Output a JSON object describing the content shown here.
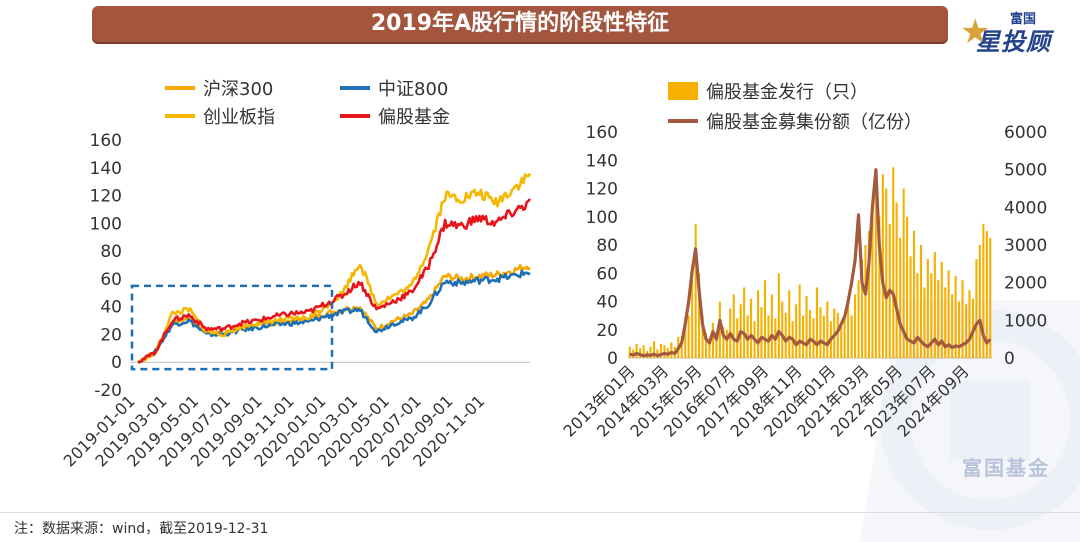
{
  "header": {
    "title": "2019年A股行情的阶段性特征"
  },
  "logo": {
    "top": "富国",
    "main": "星投顾"
  },
  "watermark": {
    "text": "富国基金"
  },
  "footnote": "注：数据来源：wind，截至2019-12-31",
  "colors": {
    "hs300": "#f6a800",
    "zz800": "#1f6fb5",
    "cyb": "#f5b800",
    "fund": "#e8141b",
    "issue_bar": "#f5b000",
    "raise_line": "#a35a3e",
    "title_bg": "#a3553e"
  },
  "chart_data": [
    {
      "type": "line",
      "ylim": [
        -20,
        160
      ],
      "yticks": [
        "160",
        "140",
        "120",
        "100",
        "80",
        "60",
        "40",
        "20",
        "0",
        "-20"
      ],
      "x_tick_labels": [
        "2019-01-01",
        "2019-03-01",
        "2019-05-01",
        "2019-07-01",
        "2019-09-01",
        "2019-11-01",
        "2020-01-01",
        "2020-03-01",
        "2020-05-01",
        "2020-07-01",
        "2020-09-01",
        "2020-11-01"
      ],
      "x": [
        "2019-01",
        "2019-02",
        "2019-03",
        "2019-04",
        "2019-05",
        "2019-06",
        "2019-07",
        "2019-08",
        "2019-09",
        "2019-10",
        "2019-11",
        "2019-12",
        "2020-01",
        "2020-02",
        "2020-03",
        "2020-04",
        "2020-05",
        "2020-06",
        "2020-07",
        "2020-08",
        "2020-09",
        "2020-10",
        "2020-11",
        "2020-12"
      ],
      "series": [
        {
          "name": "沪深300",
          "color": "#f6a800",
          "values": [
            0,
            8,
            28,
            32,
            22,
            21,
            25,
            27,
            28,
            30,
            31,
            35,
            38,
            40,
            24,
            30,
            34,
            44,
            62,
            60,
            62,
            63,
            66,
            70
          ]
        },
        {
          "name": "中证800",
          "color": "#1f6fb5",
          "values": [
            0,
            7,
            27,
            30,
            20,
            20,
            23,
            25,
            27,
            28,
            29,
            33,
            36,
            38,
            22,
            28,
            31,
            41,
            58,
            57,
            59,
            60,
            62,
            65
          ]
        },
        {
          "name": "创业板指",
          "color": "#f5b800",
          "values": [
            0,
            6,
            35,
            38,
            22,
            20,
            25,
            28,
            30,
            31,
            32,
            40,
            50,
            72,
            42,
            48,
            54,
            80,
            120,
            118,
            122,
            115,
            125,
            135
          ]
        },
        {
          "name": "偏股基金",
          "color": "#e8141b",
          "values": [
            0,
            7,
            30,
            34,
            24,
            24,
            28,
            30,
            33,
            35,
            36,
            42,
            48,
            58,
            38,
            44,
            50,
            68,
            100,
            98,
            104,
            100,
            108,
            115
          ]
        }
      ],
      "annotation": "dashed box highlighting 2019"
    },
    {
      "type": "bar+line",
      "ylim_left": [
        0,
        160
      ],
      "ylim_right": [
        0,
        6000
      ],
      "yticks_left": [
        "160",
        "140",
        "120",
        "100",
        "80",
        "60",
        "40",
        "20",
        "0"
      ],
      "yticks_right": [
        "6000",
        "5000",
        "4000",
        "3000",
        "2000",
        "1000",
        "0"
      ],
      "x_tick_labels": [
        "2013年01月",
        "2014年03月",
        "2015年05月",
        "2016年07月",
        "2017年09月",
        "2018年11月",
        "2020年01月",
        "2021年03月",
        "2022年05月",
        "2023年07月",
        "2024年09月"
      ],
      "series": [
        {
          "name": "偏股基金发行（只）",
          "type": "bar",
          "color": "#f5b000",
          "values": [
            8,
            6,
            10,
            7,
            9,
            5,
            8,
            12,
            6,
            10,
            9,
            7,
            11,
            8,
            15,
            12,
            22,
            30,
            55,
            95,
            60,
            30,
            18,
            14,
            25,
            18,
            40,
            22,
            20,
            35,
            45,
            28,
            38,
            50,
            30,
            42,
            26,
            48,
            36,
            55,
            30,
            45,
            28,
            60,
            40,
            32,
            48,
            26,
            38,
            52,
            30,
            44,
            34,
            28,
            50,
            36,
            30,
            40,
            26,
            35,
            32,
            22,
            28,
            40,
            30,
            45,
            55,
            70,
            80,
            90,
            110,
            125,
            100,
            130,
            120,
            95,
            135,
            110,
            85,
            120,
            100,
            72,
            90,
            60,
            80,
            50,
            70,
            60,
            75,
            55,
            68,
            50,
            62,
            45,
            58,
            40,
            55,
            38,
            48,
            42,
            70,
            80,
            95,
            90,
            85
          ]
        },
        {
          "name": "偏股基金募集份额（亿份）",
          "type": "line",
          "color": "#a35a3e",
          "values": [
            100,
            80,
            120,
            90,
            60,
            80,
            70,
            100,
            60,
            90,
            120,
            100,
            150,
            120,
            250,
            400,
            900,
            1500,
            2300,
            2900,
            1800,
            900,
            500,
            400,
            700,
            500,
            1000,
            600,
            500,
            650,
            500,
            450,
            700,
            650,
            500,
            600,
            500,
            400,
            550,
            500,
            450,
            600,
            500,
            700,
            600,
            450,
            550,
            500,
            350,
            450,
            400,
            350,
            500,
            450,
            350,
            450,
            400,
            350,
            500,
            600,
            700,
            900,
            1100,
            1500,
            2000,
            2600,
            3800,
            2000,
            1700,
            2500,
            4000,
            5000,
            3000,
            2000,
            1600,
            1800,
            1700,
            1300,
            900,
            700,
            500,
            450,
            400,
            550,
            450,
            350,
            300,
            400,
            500,
            350,
            450,
            300,
            350,
            280,
            320,
            300,
            350,
            400,
            500,
            700,
            900,
            1000,
            600,
            400,
            500
          ]
        }
      ]
    }
  ]
}
